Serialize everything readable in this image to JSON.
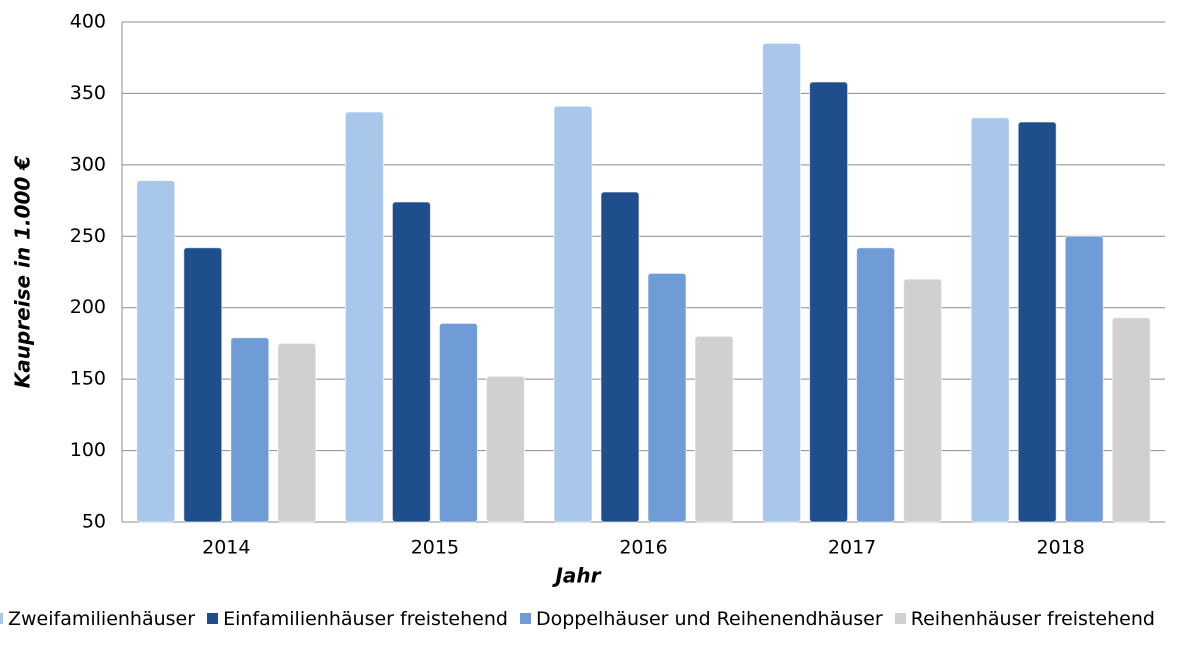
{
  "chart_data": {
    "type": "bar",
    "xlabel": "Jahr",
    "ylabel": "Kaupreise in 1.000 €",
    "categories": [
      "2014",
      "2015",
      "2016",
      "2017",
      "2018"
    ],
    "series": [
      {
        "name": "Zweifamilienhäuser",
        "color": "#a9c6eb",
        "values": [
          289,
          337,
          341,
          385,
          333
        ]
      },
      {
        "name": "Einfamilienhäuser freistehend",
        "color": "#1f4e8c",
        "values": [
          242,
          274,
          281,
          358,
          330
        ]
      },
      {
        "name": "Doppelhäuser und Reihenendhäuser",
        "color": "#6f9bd6",
        "values": [
          179,
          189,
          224,
          242,
          250
        ]
      },
      {
        "name": "Reihenhäuser freistehend",
        "color": "#d0d0d0",
        "values": [
          175,
          152,
          180,
          220,
          193
        ]
      }
    ],
    "ylim": [
      50,
      400
    ],
    "yticks": [
      50,
      100,
      150,
      200,
      250,
      300,
      350,
      400
    ],
    "grid": true
  }
}
